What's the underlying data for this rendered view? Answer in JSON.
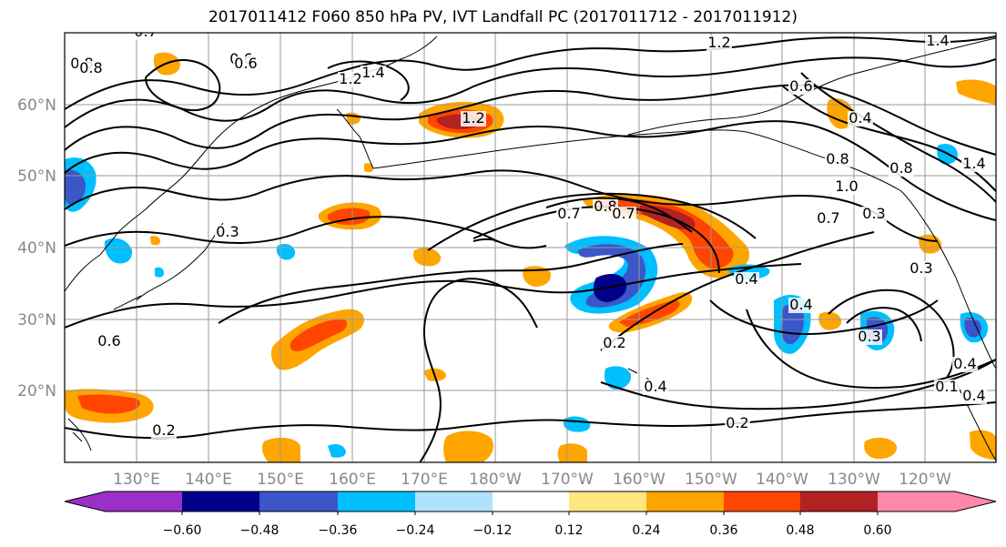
{
  "title": "2017011412 F060 850 hPa PV, IVT Landfall PC (2017011712 - 2017011912)",
  "axes": {
    "lat_labels": [
      "60°N",
      "50°N",
      "40°N",
      "30°N",
      "20°N"
    ],
    "lon_labels": [
      "130°E",
      "140°E",
      "150°E",
      "160°E",
      "170°E",
      "180°W",
      "170°W",
      "160°W",
      "150°W",
      "140°W",
      "130°W",
      "120°W"
    ]
  },
  "colorbar": {
    "colors": [
      "#9b30c8",
      "#00008b",
      "#3a56c8",
      "#00bfff",
      "#b0e2ff",
      "#ffffff",
      "#ffe680",
      "#ffa500",
      "#ff4500",
      "#b22222",
      "#ff88aa"
    ],
    "tick_labels": [
      "−0.60",
      "−0.48",
      "−0.36",
      "−0.24",
      "−0.12",
      "0.12",
      "0.24",
      "0.36",
      "0.48",
      "0.60"
    ]
  },
  "contour_labels": [
    "0.7",
    "0.8",
    "0.6",
    "1.2",
    "1.4",
    "1.2",
    "1.0",
    "0.8",
    "0.7",
    "0.6",
    "0.7",
    "0.8",
    "0.4",
    "0.3",
    "0.7",
    "0.4",
    "0.4",
    "0.3",
    "0.2",
    "0.2",
    "0.4",
    "0.3",
    "0.4",
    "1.4",
    "0.6",
    "0.2",
    "0.6",
    "0.8",
    "1.0",
    "0.8",
    "1.4",
    "1.2",
    "0.1",
    "0.4",
    "0.3"
  ],
  "chart_data": {
    "type": "heatmap",
    "title": "2017011412 F060 850 hPa PV, IVT Landfall PC (2017011712 - 2017011912)",
    "x_range": [
      "120°E",
      "115°W"
    ],
    "y_range": [
      "10°N",
      "70°N"
    ],
    "colorbar_bounds": [
      -0.6,
      -0.48,
      -0.36,
      -0.24,
      -0.12,
      0.12,
      0.24,
      0.36,
      0.48,
      0.6
    ],
    "extend": "both",
    "grid": true
  }
}
